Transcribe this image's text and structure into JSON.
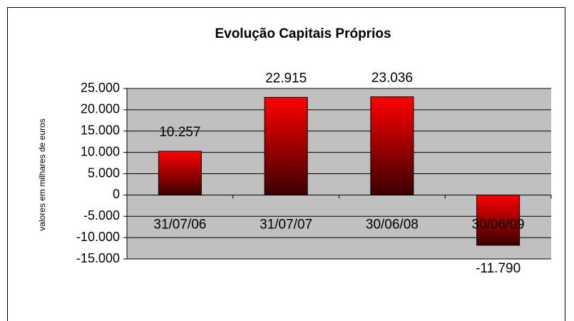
{
  "chart_data": {
    "type": "bar",
    "title": "Evolução Capitais Próprios",
    "y_label": "valores em milhares de euros",
    "categories": [
      "31/07/06",
      "31/07/07",
      "30/06/08",
      "30/06/09"
    ],
    "values": [
      10257,
      22915,
      23036,
      -11790
    ],
    "value_labels": [
      "10.257",
      "22.915",
      "23.036",
      "-11.790"
    ],
    "color": "#ff0000",
    "ylim": [
      -15000,
      25000
    ],
    "yticks": [
      {
        "value": -15000,
        "label": "-15.000"
      },
      {
        "value": -10000,
        "label": "-10.000"
      },
      {
        "value": -5000,
        "label": "-5.000"
      },
      0,
      {
        "value": 5000,
        "label": "5.000"
      },
      {
        "value": 10000,
        "label": "10.000"
      },
      {
        "value": 15000,
        "label": "15.000"
      },
      {
        "value": 20000,
        "label": "20.000"
      },
      {
        "value": 25000,
        "label": "25.000"
      }
    ],
    "grid": true
  }
}
